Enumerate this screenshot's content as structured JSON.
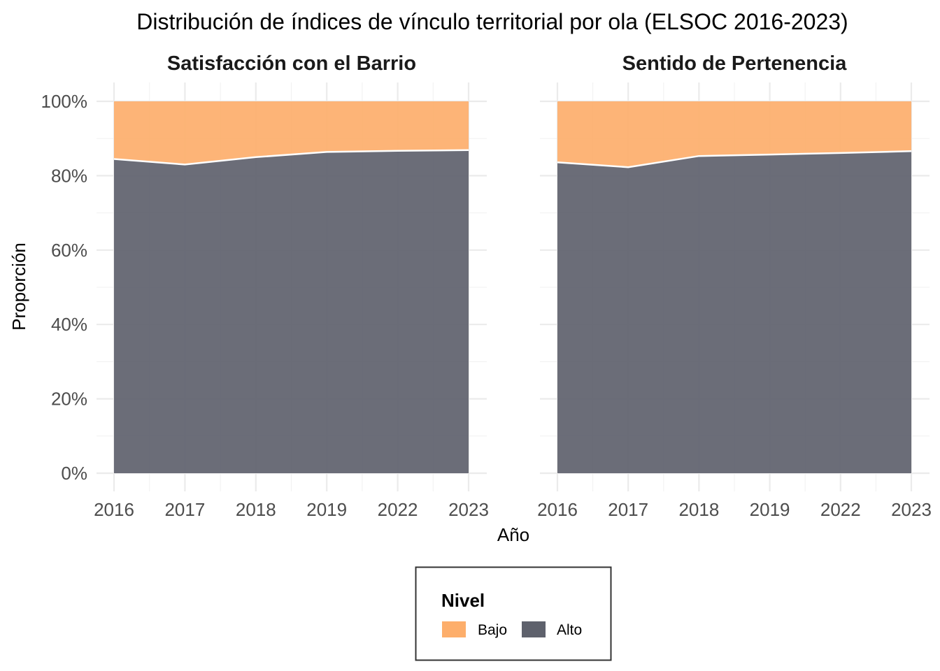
{
  "chart_data": {
    "type": "area",
    "stacked": "proportion",
    "title": "Distribución de índices de vínculo territorial por ola (ELSOC 2016-2023)",
    "xlabel": "Año",
    "ylabel": "Proporción",
    "ylim": [
      0,
      1
    ],
    "y_ticks": [
      "0%",
      "20%",
      "40%",
      "60%",
      "80%",
      "100%"
    ],
    "categories": [
      "2016",
      "2017",
      "2018",
      "2019",
      "2022",
      "2023"
    ],
    "grid": true,
    "legend": {
      "title": "Nivel",
      "position": "bottom",
      "items": [
        {
          "label": "Bajo",
          "color": "#fdae6b"
        },
        {
          "label": "Alto",
          "color": "#5e616c"
        }
      ]
    },
    "panels": [
      {
        "strip": "Satisfacción con el Barrio",
        "series": [
          {
            "name": "Alto",
            "values": [
              0.845,
              0.83,
              0.85,
              0.864,
              0.867,
              0.869
            ]
          },
          {
            "name": "Bajo",
            "values": [
              0.155,
              0.17,
              0.15,
              0.136,
              0.133,
              0.131
            ]
          }
        ]
      },
      {
        "strip": "Sentido de Pertenencia",
        "series": [
          {
            "name": "Alto",
            "values": [
              0.836,
              0.823,
              0.853,
              0.857,
              0.861,
              0.866
            ]
          },
          {
            "name": "Bajo",
            "values": [
              0.164,
              0.177,
              0.147,
              0.143,
              0.139,
              0.134
            ]
          }
        ]
      }
    ]
  }
}
